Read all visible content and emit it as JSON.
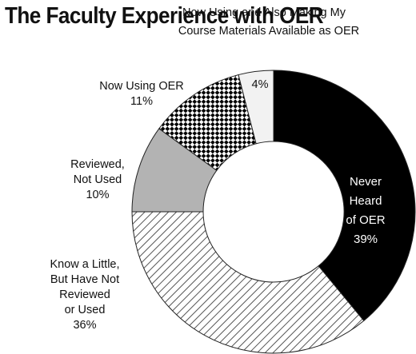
{
  "chart_data": {
    "type": "pie",
    "title": "The Faculty Experience with OER",
    "slices": [
      {
        "label_lines": [
          "Never",
          "Heard",
          "of OER"
        ],
        "value": 39,
        "value_label": "39%",
        "fill": "solid",
        "color": "#000000"
      },
      {
        "label_lines": [
          "Know a Little,",
          "But Have Not",
          "Reviewed",
          "or Used"
        ],
        "value": 36,
        "value_label": "36%",
        "fill": "diagonal-hatch",
        "color": "#555555"
      },
      {
        "label_lines": [
          "Reviewed,",
          "Not Used"
        ],
        "value": 10,
        "value_label": "10%",
        "fill": "solid",
        "color": "#b3b3b3"
      },
      {
        "label_lines": [
          "Now Using OER"
        ],
        "value": 11,
        "value_label": "11%",
        "fill": "checkerboard",
        "color": "#000000"
      },
      {
        "label_lines": [
          "Now Using and Also Making My",
          "Course Materials Available as OER"
        ],
        "value": 4,
        "value_label": "4%",
        "fill": "solid",
        "color": "#f2f2f2"
      }
    ],
    "donut": true
  }
}
